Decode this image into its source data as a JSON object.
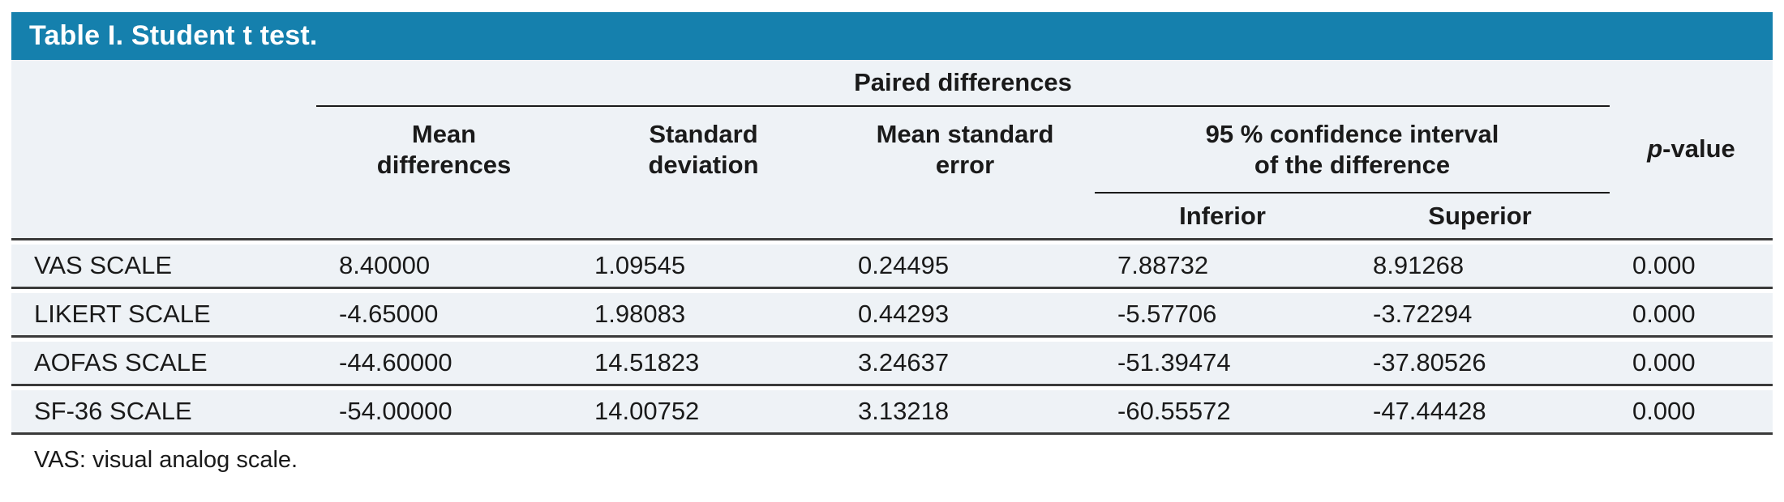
{
  "title": "Table I. Student t test.",
  "colors": {
    "title_bar_bg": "#1580ad",
    "title_text": "#ffffff",
    "table_bg": "#eef2f6",
    "separator_dark": "#3a3a3a",
    "rule_thin": "#1a1a1a",
    "text": "#1a1a1a"
  },
  "table": {
    "group_header": "Paired differences",
    "col_mean": "Mean\ndifferences",
    "col_sd": "Standard\ndeviation",
    "col_mse": "Mean standard\nerror",
    "col_ci": "95 % confidence interval\nof the difference",
    "ci_inferior": "Inferior",
    "ci_superior": "Superior",
    "p_italic": "p",
    "p_rest": "-value",
    "rows": [
      {
        "label": "VAS SCALE",
        "values": [
          "8.40000",
          "1.09545",
          "0.24495",
          "7.88732",
          "8.91268",
          "0.000"
        ]
      },
      {
        "label": "LIKERT SCALE",
        "values": [
          "-4.65000",
          "1.98083",
          "0.44293",
          "-5.57706",
          "-3.72294",
          "0.000"
        ]
      },
      {
        "label": "AOFAS SCALE",
        "values": [
          "-44.60000",
          "14.51823",
          "3.24637",
          "-51.39474",
          "-37.80526",
          "0.000"
        ]
      },
      {
        "label": "SF-36 SCALE",
        "values": [
          "-54.00000",
          "14.00752",
          "3.13218",
          "-60.55572",
          "-47.44428",
          "0.000"
        ]
      }
    ],
    "footnote": "VAS: visual analog scale."
  }
}
